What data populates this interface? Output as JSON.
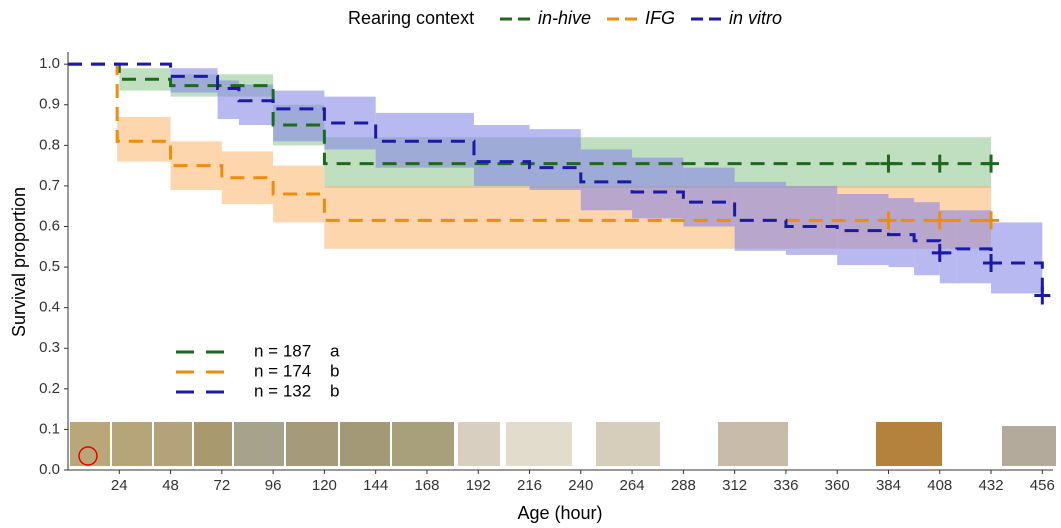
{
  "chart_data": {
    "type": "survival-step",
    "legend_title": "Rearing context",
    "x_label": "Age (hour)",
    "y_label": "Survival proportion",
    "xlim": [
      0,
      461
    ],
    "ylim": [
      0,
      1.03
    ],
    "xticks": [
      24,
      48,
      72,
      96,
      120,
      144,
      168,
      192,
      216,
      240,
      264,
      288,
      312,
      336,
      360,
      384,
      408,
      432,
      456
    ],
    "yticks": [
      {
        "value": 0,
        "label": "0.0"
      },
      0.1,
      0.2,
      0.3,
      0.4,
      0.5,
      0.6,
      0.7,
      0.8,
      0.9,
      {
        "value": 1,
        "label": "1.0"
      }
    ],
    "series": [
      {
        "name": "in-hive",
        "color": "#1b6b1b",
        "band_color": "#8cc48c",
        "n_label": "n = 187",
        "group": "a",
        "x": [
          0,
          24,
          48,
          96,
          120,
          432
        ],
        "values": [
          1.0,
          0.963,
          0.947,
          0.85,
          0.755,
          0.755
        ],
        "lower": [
          null,
          0.935,
          0.92,
          0.8,
          0.695,
          null
        ],
        "upper": [
          null,
          0.99,
          0.975,
          0.9,
          0.82,
          null
        ],
        "censor_x": [
          384,
          408,
          432
        ],
        "censor_values": [
          0.755,
          0.755,
          0.755
        ]
      },
      {
        "name": "IFG",
        "color": "#f08c0a",
        "band_color": "#fbb46c",
        "n_label": "n = 174",
        "group": "b",
        "x": [
          0,
          23,
          48,
          72,
          96,
          120,
          432
        ],
        "values": [
          1.0,
          0.81,
          0.75,
          0.72,
          0.68,
          0.615,
          0.615
        ],
        "lower": [
          null,
          0.76,
          0.69,
          0.655,
          0.61,
          0.545,
          null
        ],
        "upper": [
          null,
          0.87,
          0.81,
          0.785,
          0.75,
          0.7,
          null
        ],
        "censor_x": [
          384,
          408,
          432
        ],
        "censor_values": [
          0.615,
          0.615,
          0.615
        ]
      },
      {
        "name": "in vitro",
        "color": "#1a1aa6",
        "band_color": "#7f7fe8",
        "n_label": "n = 132",
        "group": "b",
        "x": [
          0,
          48,
          70,
          80,
          96,
          120,
          144,
          190,
          216,
          240,
          264,
          288,
          312,
          336,
          360,
          384,
          396,
          408,
          416,
          432,
          456
        ],
        "values": [
          1.0,
          0.97,
          0.94,
          0.91,
          0.89,
          0.855,
          0.81,
          0.76,
          0.745,
          0.71,
          0.685,
          0.66,
          0.615,
          0.6,
          0.59,
          0.58,
          0.565,
          0.535,
          0.545,
          0.51,
          0.43
        ],
        "lower": [
          null,
          0.93,
          0.865,
          0.85,
          0.81,
          0.79,
          0.745,
          0.7,
          0.69,
          0.64,
          0.62,
          0.6,
          0.54,
          0.53,
          0.505,
          0.5,
          0.48,
          0.46,
          0.46,
          0.435,
          null
        ],
        "upper": [
          null,
          0.99,
          0.96,
          0.95,
          0.935,
          0.92,
          0.88,
          0.85,
          0.84,
          0.79,
          0.77,
          0.745,
          0.71,
          0.7,
          0.68,
          0.67,
          0.66,
          0.64,
          0.64,
          0.61,
          null
        ],
        "censor_x": [
          408,
          432,
          456
        ],
        "censor_values": [
          0.535,
          0.51,
          0.43
        ]
      }
    ]
  }
}
